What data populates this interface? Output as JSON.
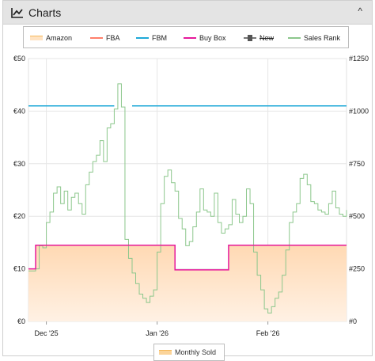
{
  "panel": {
    "title": "Charts",
    "icon": "line-chart-icon",
    "collapse_icon": "chevron-up-icon",
    "collapse_glyph": "^"
  },
  "legend": [
    {
      "label": "Amazon",
      "color": "#ffd9a8",
      "style": "area"
    },
    {
      "label": "FBA",
      "color": "#ff7f6b",
      "style": "line"
    },
    {
      "label": "FBM",
      "color": "#1fa9d8",
      "style": "line"
    },
    {
      "label": "Buy Box",
      "color": "#e6199b",
      "style": "line"
    },
    {
      "label": "New",
      "color": "#555555",
      "style": "marker-disabled"
    },
    {
      "label": "Sales Rank",
      "color": "#8cc78c",
      "style": "line"
    }
  ],
  "monthly_legend": {
    "label": "Monthly Sold",
    "color": "#f5b85a"
  },
  "chart_data": {
    "type": "line",
    "y_left": {
      "ticks": [
        "€0",
        "€10",
        "€20",
        "€30",
        "€40",
        "€50"
      ],
      "range": [
        0,
        50
      ],
      "unit": "€"
    },
    "y_right": {
      "ticks": [
        "#0",
        "#250",
        "#500",
        "#750",
        "#1000",
        "#1250"
      ],
      "range": [
        0,
        1250
      ]
    },
    "x_ticks": [
      "Dec '25",
      "Jan '26",
      "Feb '26"
    ],
    "x_range": [
      "2025-11-26",
      "2026-02-23"
    ],
    "grid": true,
    "series": [
      {
        "name": "FBM",
        "color": "#1fa9d8",
        "axis": "left",
        "points": [
          [
            "2025-11-26",
            41
          ],
          [
            "2025-12-20",
            41
          ],
          [
            "2025-12-21",
            null
          ],
          [
            "2025-12-25",
            41
          ],
          [
            "2026-02-23",
            41
          ]
        ]
      },
      {
        "name": "Buy Box",
        "color": "#e6199b",
        "axis": "left",
        "points": [
          [
            "2025-11-26",
            10
          ],
          [
            "2025-11-28",
            10
          ],
          [
            "2025-11-28",
            14.5
          ],
          [
            "2026-01-06",
            14.5
          ],
          [
            "2026-01-06",
            9.8
          ],
          [
            "2026-01-21",
            9.8
          ],
          [
            "2026-01-21",
            14.5
          ],
          [
            "2026-02-23",
            14.5
          ]
        ]
      },
      {
        "name": "Amazon",
        "color": "#ffd9a8",
        "axis": "left",
        "fill": true,
        "points": [
          [
            "2025-11-26",
            10
          ],
          [
            "2025-11-28",
            10
          ],
          [
            "2025-11-28",
            14.5
          ],
          [
            "2026-01-06",
            14.5
          ],
          [
            "2026-01-06",
            9.8
          ],
          [
            "2026-01-21",
            9.8
          ],
          [
            "2026-01-21",
            14.5
          ],
          [
            "2026-02-23",
            14.5
          ]
        ]
      },
      {
        "name": "Sales Rank",
        "color": "#8cc78c",
        "axis": "right",
        "points": [
          [
            "2025-11-26",
            240
          ],
          [
            "2025-11-28",
            250
          ],
          [
            "2025-11-29",
            360
          ],
          [
            "2025-11-30",
            350
          ],
          [
            "2025-12-01",
            470
          ],
          [
            "2025-12-02",
            520
          ],
          [
            "2025-12-03",
            610
          ],
          [
            "2025-12-04",
            640
          ],
          [
            "2025-12-05",
            560
          ],
          [
            "2025-12-06",
            620
          ],
          [
            "2025-12-07",
            530
          ],
          [
            "2025-12-08",
            590
          ],
          [
            "2025-12-09",
            610
          ],
          [
            "2025-12-10",
            560
          ],
          [
            "2025-12-11",
            510
          ],
          [
            "2025-12-12",
            650
          ],
          [
            "2025-12-13",
            710
          ],
          [
            "2025-12-14",
            760
          ],
          [
            "2025-12-15",
            790
          ],
          [
            "2025-12-16",
            860
          ],
          [
            "2025-12-17",
            760
          ],
          [
            "2025-12-18",
            920
          ],
          [
            "2025-12-19",
            940
          ],
          [
            "2025-12-20",
            1010
          ],
          [
            "2025-12-21",
            1130
          ],
          [
            "2025-12-22",
            1020
          ],
          [
            "2025-12-23",
            390
          ],
          [
            "2025-12-24",
            300
          ],
          [
            "2025-12-25",
            230
          ],
          [
            "2025-12-26",
            180
          ],
          [
            "2025-12-27",
            130
          ],
          [
            "2025-12-28",
            110
          ],
          [
            "2025-12-29",
            90
          ],
          [
            "2025-12-30",
            120
          ],
          [
            "2025-12-31",
            150
          ],
          [
            "2026-01-01",
            330
          ],
          [
            "2026-01-02",
            560
          ],
          [
            "2026-01-03",
            690
          ],
          [
            "2026-01-04",
            720
          ],
          [
            "2026-01-05",
            660
          ],
          [
            "2026-01-06",
            620
          ],
          [
            "2026-01-07",
            490
          ],
          [
            "2026-01-08",
            440
          ],
          [
            "2026-01-09",
            360
          ],
          [
            "2026-01-10",
            380
          ],
          [
            "2026-01-11",
            450
          ],
          [
            "2026-01-12",
            520
          ],
          [
            "2026-01-13",
            630
          ],
          [
            "2026-01-14",
            530
          ],
          [
            "2026-01-15",
            520
          ],
          [
            "2026-01-16",
            500
          ],
          [
            "2026-01-17",
            610
          ],
          [
            "2026-01-18",
            470
          ],
          [
            "2026-01-19",
            420
          ],
          [
            "2026-01-20",
            440
          ],
          [
            "2026-01-21",
            460
          ],
          [
            "2026-01-22",
            580
          ],
          [
            "2026-01-23",
            510
          ],
          [
            "2026-01-24",
            470
          ],
          [
            "2026-01-25",
            500
          ],
          [
            "2026-01-26",
            630
          ],
          [
            "2026-01-27",
            560
          ],
          [
            "2026-01-28",
            330
          ],
          [
            "2026-01-29",
            220
          ],
          [
            "2026-01-30",
            150
          ],
          [
            "2026-01-31",
            60
          ],
          [
            "2026-02-01",
            40
          ],
          [
            "2026-02-02",
            70
          ],
          [
            "2026-02-03",
            110
          ],
          [
            "2026-02-04",
            140
          ],
          [
            "2026-02-05",
            220
          ],
          [
            "2026-02-06",
            340
          ],
          [
            "2026-02-07",
            470
          ],
          [
            "2026-02-08",
            520
          ],
          [
            "2026-02-09",
            560
          ],
          [
            "2026-02-10",
            680
          ],
          [
            "2026-02-11",
            700
          ],
          [
            "2026-02-12",
            650
          ],
          [
            "2026-02-13",
            570
          ],
          [
            "2026-02-14",
            560
          ],
          [
            "2026-02-15",
            530
          ],
          [
            "2026-02-16",
            520
          ],
          [
            "2026-02-17",
            510
          ],
          [
            "2026-02-18",
            560
          ],
          [
            "2026-02-19",
            620
          ],
          [
            "2026-02-20",
            540
          ],
          [
            "2026-02-21",
            510
          ],
          [
            "2026-02-22",
            500
          ],
          [
            "2026-02-23",
            530
          ]
        ]
      }
    ]
  }
}
